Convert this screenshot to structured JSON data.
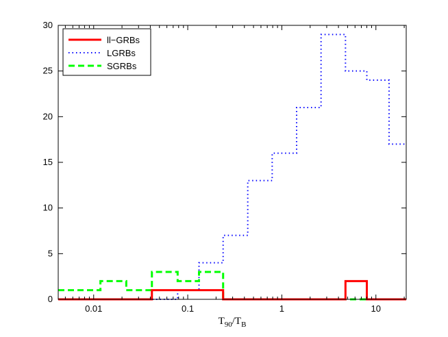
{
  "chart_data": {
    "type": "line",
    "step": true,
    "xscale": "log",
    "xlim": [
      0.0042,
      21
    ],
    "ylim": [
      0,
      30
    ],
    "x_ticks": [
      0.01,
      0.1,
      1,
      10
    ],
    "x_tick_labels": [
      "0.01",
      "0.1",
      "1",
      "10"
    ],
    "y_ticks": [
      0,
      5,
      10,
      15,
      20,
      25,
      30
    ],
    "y_tick_labels": [
      "0",
      "5",
      "10",
      "15",
      "20",
      "25",
      "30"
    ],
    "xlabel": {
      "main_1": "T",
      "sub_1": "90",
      "slash": "/",
      "main_2": "T",
      "sub_2": "B"
    },
    "ylabel": "",
    "title": "",
    "grid": false,
    "legend_position": "top-left",
    "bin_edges": [
      0.0042,
      0.0063,
      0.0118,
      0.0222,
      0.0416,
      0.0781,
      0.1317,
      0.2377,
      0.4344,
      0.7899,
      1.4363,
      2.6116,
      4.7486,
      8.0092,
      13.8038,
      21
    ],
    "series": [
      {
        "name": "ll−GRBs",
        "color": "#ff0000",
        "style": "solid",
        "counts": [
          0,
          0,
          0,
          0,
          1,
          1,
          1,
          0,
          0,
          0,
          0,
          0,
          2,
          0,
          0
        ]
      },
      {
        "name": "LGRBs",
        "color": "#0000ff",
        "style": "dotted",
        "counts": [
          0,
          0,
          0,
          0,
          0,
          1,
          4,
          7,
          13,
          16,
          21,
          29,
          25,
          24,
          17
        ]
      },
      {
        "name": "SGRBs",
        "color": "#00ff00",
        "style": "dashed",
        "counts": [
          1,
          1,
          2,
          1,
          3,
          2,
          3,
          0,
          0,
          0,
          0,
          0,
          0,
          0,
          0
        ]
      }
    ]
  }
}
